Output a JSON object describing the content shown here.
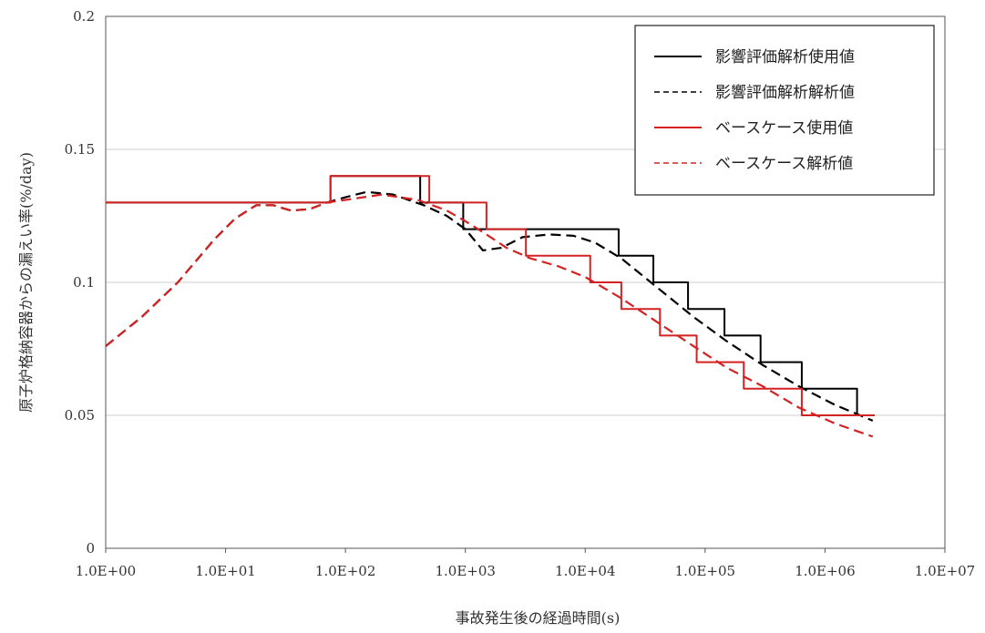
{
  "chart_data": {
    "type": "line",
    "xlabel": "事故発生後の経過時間(s)",
    "ylabel": "原子炉格納容器からの漏えい率(%/day)",
    "xscale": "log",
    "xlim": [
      1,
      10000000
    ],
    "ylim": [
      0,
      0.2
    ],
    "x_ticks": [
      1,
      10,
      100,
      1000,
      10000,
      100000,
      1000000,
      10000000
    ],
    "x_tick_labels": [
      "1.0E+00",
      "1.0E+01",
      "1.0E+02",
      "1.0E+03",
      "1.0E+04",
      "1.0E+05",
      "1.0E+06",
      "1.0E+07"
    ],
    "y_ticks": [
      0,
      0.05,
      0.1,
      0.15,
      0.2
    ],
    "y_tick_labels": [
      "0",
      "0.05",
      "0.1",
      "0.15",
      "0.2"
    ],
    "grid": "horizontal",
    "legend_position": "top-right",
    "series": [
      {
        "name": "影響評価解析使用値",
        "color": "#000000",
        "style": "solid-step",
        "points": [
          [
            1,
            0.13
          ],
          [
            75,
            0.13
          ],
          [
            75,
            0.14
          ],
          [
            420,
            0.14
          ],
          [
            420,
            0.13
          ],
          [
            960,
            0.13
          ],
          [
            960,
            0.12
          ],
          [
            3400,
            0.12
          ],
          [
            3400,
            0.12
          ],
          [
            19000,
            0.12
          ],
          [
            19000,
            0.11
          ],
          [
            37000,
            0.11
          ],
          [
            37000,
            0.1
          ],
          [
            72000,
            0.1
          ],
          [
            72000,
            0.09
          ],
          [
            145000,
            0.09
          ],
          [
            145000,
            0.08
          ],
          [
            290000,
            0.08
          ],
          [
            290000,
            0.07
          ],
          [
            640000,
            0.07
          ],
          [
            640000,
            0.06
          ],
          [
            1850000,
            0.06
          ],
          [
            1850000,
            0.05
          ],
          [
            2600000,
            0.05
          ]
        ]
      },
      {
        "name": "影響評価解析解析値",
        "color": "#000000",
        "style": "dashed",
        "points": [
          [
            1,
            0.076
          ],
          [
            2,
            0.087
          ],
          [
            4,
            0.1
          ],
          [
            8,
            0.116
          ],
          [
            12,
            0.124
          ],
          [
            18,
            0.129
          ],
          [
            25,
            0.129
          ],
          [
            35,
            0.127
          ],
          [
            50,
            0.1275
          ],
          [
            70,
            0.13
          ],
          [
            100,
            0.132
          ],
          [
            150,
            0.134
          ],
          [
            250,
            0.133
          ],
          [
            450,
            0.129
          ],
          [
            700,
            0.125
          ],
          [
            1000,
            0.12
          ],
          [
            1400,
            0.112
          ],
          [
            2000,
            0.113
          ],
          [
            3000,
            0.117
          ],
          [
            5000,
            0.118
          ],
          [
            8000,
            0.1175
          ],
          [
            12000,
            0.115
          ],
          [
            20000,
            0.109
          ],
          [
            40000,
            0.098
          ],
          [
            80000,
            0.087
          ],
          [
            150000,
            0.078
          ],
          [
            300000,
            0.069
          ],
          [
            600000,
            0.061
          ],
          [
            1200000,
            0.054
          ],
          [
            2500000,
            0.048
          ]
        ]
      },
      {
        "name": "ベースケース使用値",
        "color": "#d42222",
        "style": "solid-step",
        "points": [
          [
            1,
            0.13
          ],
          [
            75,
            0.13
          ],
          [
            75,
            0.14
          ],
          [
            500,
            0.14
          ],
          [
            500,
            0.13
          ],
          [
            1500,
            0.13
          ],
          [
            1500,
            0.12
          ],
          [
            3200,
            0.12
          ],
          [
            3200,
            0.11
          ],
          [
            11000,
            0.11
          ],
          [
            11000,
            0.1
          ],
          [
            20000,
            0.1
          ],
          [
            20000,
            0.09
          ],
          [
            42000,
            0.09
          ],
          [
            42000,
            0.08
          ],
          [
            85000,
            0.08
          ],
          [
            85000,
            0.07
          ],
          [
            210000,
            0.07
          ],
          [
            210000,
            0.06
          ],
          [
            640000,
            0.06
          ],
          [
            640000,
            0.05
          ],
          [
            2600000,
            0.05
          ]
        ]
      },
      {
        "name": "ベースケース解析値",
        "color": "#d42222",
        "style": "dashed",
        "points": [
          [
            1,
            0.076
          ],
          [
            2,
            0.087
          ],
          [
            4,
            0.1
          ],
          [
            8,
            0.116
          ],
          [
            12,
            0.124
          ],
          [
            18,
            0.129
          ],
          [
            25,
            0.129
          ],
          [
            35,
            0.127
          ],
          [
            50,
            0.1275
          ],
          [
            70,
            0.13
          ],
          [
            100,
            0.131
          ],
          [
            200,
            0.133
          ],
          [
            400,
            0.131
          ],
          [
            700,
            0.127
          ],
          [
            1000,
            0.123
          ],
          [
            1500,
            0.118
          ],
          [
            2200,
            0.113
          ],
          [
            3500,
            0.109
          ],
          [
            6000,
            0.106
          ],
          [
            10000,
            0.102
          ],
          [
            20000,
            0.094
          ],
          [
            40000,
            0.085
          ],
          [
            80000,
            0.076
          ],
          [
            150000,
            0.068
          ],
          [
            300000,
            0.061
          ],
          [
            600000,
            0.053
          ],
          [
            1200000,
            0.047
          ],
          [
            2500000,
            0.042
          ]
        ]
      }
    ]
  }
}
